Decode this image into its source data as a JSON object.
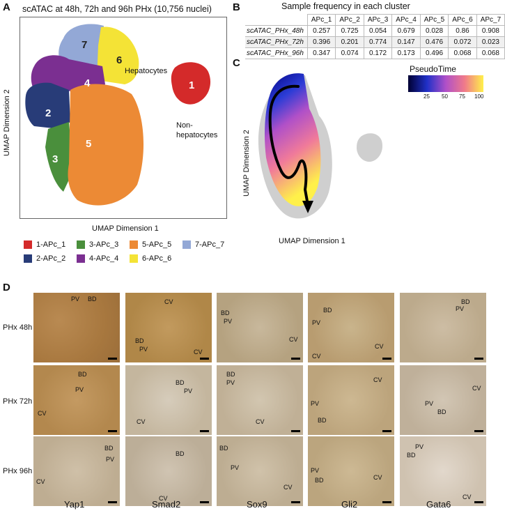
{
  "panels": {
    "A": "A",
    "B": "B",
    "C": "C",
    "D": "D"
  },
  "panel_a": {
    "title": "scATAC at 48h, 72h and 96h PHx (10,756 nuclei)",
    "xlabel": "UMAP Dimension 1",
    "ylabel": "UMAP Dimension 2",
    "cluster_numbers": [
      "1",
      "2",
      "3",
      "4",
      "5",
      "6",
      "7"
    ],
    "hepatocytes_label": "Hepatocytes",
    "non_hep_line1": "Non-",
    "non_hep_line2": "hepatocytes",
    "legend": [
      {
        "label": "1-APc_1",
        "color": "#d42a2a"
      },
      {
        "label": "3-APc_3",
        "color": "#4a8f3c"
      },
      {
        "label": "5-APc_5",
        "color": "#ec8a35"
      },
      {
        "label": "7-APc_7",
        "color": "#93a8d6"
      },
      {
        "label": "2-APc_2",
        "color": "#283c78"
      },
      {
        "label": "4-APc_4",
        "color": "#7b2f91"
      },
      {
        "label": "6-APc_6",
        "color": "#f4e336"
      }
    ]
  },
  "panel_b": {
    "title": "Sample frequency in each cluster",
    "columns": [
      "APc_1",
      "APc_2",
      "APc_3",
      "APc_4",
      "APc_5",
      "APc_6",
      "APc_7"
    ],
    "rows": [
      {
        "name": "scATAC_PHx_48h",
        "values": [
          "0.257",
          "0.725",
          "0.054",
          "0.679",
          "0.028",
          "0.86",
          "0.908"
        ]
      },
      {
        "name": "scATAC_PHx_72h",
        "values": [
          "0.396",
          "0.201",
          "0.774",
          "0.147",
          "0.476",
          "0.072",
          "0.023"
        ]
      },
      {
        "name": "scATAC_PHx_96h",
        "values": [
          "0.347",
          "0.074",
          "0.172",
          "0.173",
          "0.496",
          "0.068",
          "0.068"
        ]
      }
    ]
  },
  "panel_c": {
    "xlabel": "UMAP Dimension 1",
    "ylabel": "UMAP Dimension 2",
    "colorbar_title": "PseudoTime",
    "colorbar_ticks": [
      "25",
      "50",
      "75",
      "100"
    ]
  },
  "panel_d": {
    "rows": [
      "PHx 48h",
      "PHx 72h",
      "PHx 96h"
    ],
    "columns": [
      "Yap1",
      "Smad2",
      "Sox9",
      "Gli2",
      "Gata6"
    ],
    "labels": {
      "PV": "PV",
      "BD": "BD",
      "CV": "CV"
    }
  },
  "colors": {
    "hepatocyte_tissue": "#c9a877",
    "nuclei": "#6a6fa0",
    "pseudotime_start": "#000080",
    "pseudotime_end": "#fff04a"
  }
}
